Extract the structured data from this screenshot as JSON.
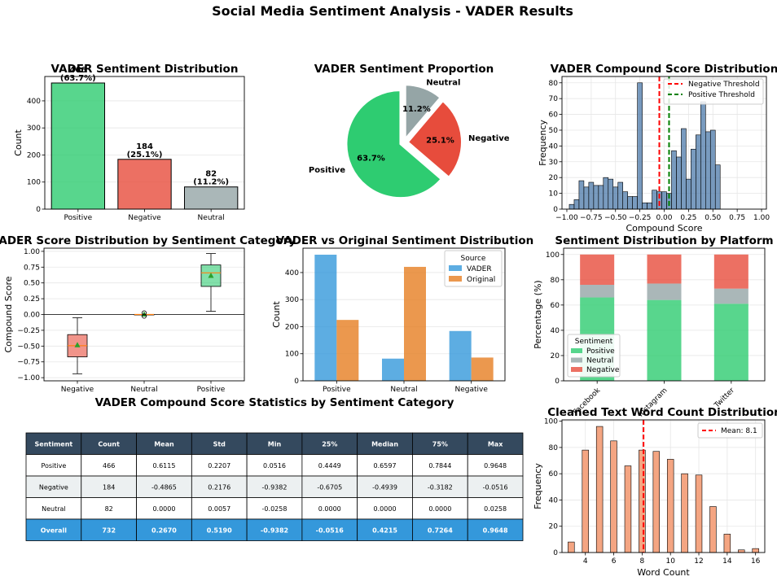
{
  "figure": {
    "title": "Social Media Sentiment Analysis - VADER Results"
  },
  "colors": {
    "positive": "#2ecc71",
    "negative": "#e74c3c",
    "neutral": "#95a5a6",
    "vader": "#3498db",
    "original": "#e67e22",
    "hist": "#4c7aaa",
    "wordcount": "#f4a582",
    "header": "#34495e",
    "overall": "#3498db",
    "zebra": "#ecf0f1"
  },
  "chart_data": [
    {
      "id": "dist",
      "type": "bar",
      "title": "VADER Sentiment Distribution",
      "xlabel": "",
      "ylabel": "Count",
      "categories": [
        "Positive",
        "Negative",
        "Neutral"
      ],
      "values": [
        466,
        184,
        82
      ],
      "data_labels": [
        "466\n(63.7%)",
        "184\n(25.1%)",
        "82\n(11.2%)"
      ],
      "ylim": [
        0,
        490
      ],
      "yticks": [
        0,
        100,
        200,
        300,
        400
      ]
    },
    {
      "id": "pie",
      "type": "pie",
      "title": "VADER Sentiment Proportion",
      "labels": [
        "Positive",
        "Negative",
        "Neutral"
      ],
      "values": [
        63.7,
        25.1,
        11.2
      ],
      "pct_labels": [
        "63.7%",
        "25.1%",
        "11.2%"
      ]
    },
    {
      "id": "compound_hist",
      "type": "bar",
      "title": "VADER Compound Score Distribution",
      "xlabel": "Compound Score",
      "ylabel": "Frequency",
      "bin_start": -0.975,
      "bin_width": 0.05,
      "values": [
        3,
        6,
        18,
        14,
        17,
        15,
        15,
        20,
        19,
        14,
        17,
        11,
        8,
        8,
        80,
        4,
        4,
        12,
        11,
        11,
        10,
        37,
        33,
        51,
        19,
        38,
        47,
        68,
        49,
        50,
        28
      ],
      "xlim": [
        -1.05,
        1.05
      ],
      "ylim": [
        0,
        84
      ],
      "xticks": [
        -1.0,
        -0.75,
        -0.5,
        -0.25,
        0.0,
        0.25,
        0.5,
        0.75,
        1.0
      ],
      "xtick_labels": [
        "−1.00",
        "−0.75",
        "−0.50",
        "−0.25",
        "0.00",
        "0.25",
        "0.50",
        "0.75",
        "1.00"
      ],
      "yticks": [
        0,
        10,
        20,
        30,
        40,
        50,
        60,
        70,
        80
      ],
      "thresholds": [
        {
          "name": "Negative Threshold",
          "x": -0.05,
          "color": "#ff0000"
        },
        {
          "name": "Positive Threshold",
          "x": 0.05,
          "color": "#008000"
        }
      ]
    },
    {
      "id": "box",
      "type": "box",
      "title": "VADER Score Distribution by Sentiment Category",
      "xlabel": "",
      "ylabel": "Compound Score",
      "categories": [
        "Negative",
        "Neutral",
        "Positive"
      ],
      "boxes": [
        {
          "whislo": -0.9382,
          "q1": -0.6705,
          "med": -0.4939,
          "q3": -0.3182,
          "whishi": -0.0516,
          "mean": -0.4865,
          "fliers": []
        },
        {
          "whislo": 0.0,
          "q1": 0.0,
          "med": 0.0,
          "q3": 0.0,
          "whishi": 0.0,
          "mean": 0.0,
          "fliers": [
            0.0258,
            -0.0258
          ]
        },
        {
          "whislo": 0.0516,
          "q1": 0.4449,
          "med": 0.6597,
          "q3": 0.7844,
          "whishi": 0.9648,
          "mean": 0.6115,
          "fliers": []
        }
      ],
      "ylim": [
        -1.05,
        1.05
      ],
      "yticks": [
        -1.0,
        -0.75,
        -0.5,
        -0.25,
        0.0,
        0.25,
        0.5,
        0.75,
        1.0
      ],
      "ytick_labels": [
        "−1.00",
        "−0.75",
        "−0.50",
        "−0.25",
        "0.00",
        "0.25",
        "0.50",
        "0.75",
        "1.00"
      ]
    },
    {
      "id": "vs",
      "type": "bar",
      "title": "VADER vs Original Sentiment Distribution",
      "xlabel": "",
      "ylabel": "Count",
      "categories": [
        "Positive",
        "Neutral",
        "Negative"
      ],
      "series": [
        {
          "name": "VADER",
          "values": [
            466,
            82,
            184
          ]
        },
        {
          "name": "Original",
          "values": [
            225,
            421,
            86
          ]
        }
      ],
      "legend_title": "Source",
      "ylim": [
        0,
        490
      ],
      "yticks": [
        0,
        100,
        200,
        300,
        400
      ]
    },
    {
      "id": "platform",
      "type": "bar",
      "stacked": true,
      "title": "Sentiment Distribution by Platform",
      "xlabel": "",
      "ylabel": "Percentage (%)",
      "categories": [
        "Facebook",
        "Instagram",
        "Twitter"
      ],
      "series": [
        {
          "name": "Positive",
          "values": [
            66,
            64,
            61
          ]
        },
        {
          "name": "Neutral",
          "values": [
            10,
            13,
            12
          ]
        },
        {
          "name": "Negative",
          "values": [
            24,
            23,
            27
          ]
        }
      ],
      "legend_title": "Sentiment",
      "ylim": [
        0,
        105
      ],
      "yticks": [
        0,
        20,
        40,
        60,
        80,
        100
      ]
    },
    {
      "id": "wordcount",
      "type": "bar",
      "title": "Cleaned Text Word Count Distribution",
      "xlabel": "Word Count",
      "ylabel": "Frequency",
      "x": [
        3,
        4,
        5,
        6,
        7,
        8,
        9,
        10,
        11,
        12,
        13,
        14,
        15,
        16
      ],
      "values": [
        8,
        78,
        96,
        85,
        66,
        78,
        77,
        71,
        60,
        59,
        35,
        14,
        2,
        3
      ],
      "mean": 8.1,
      "mean_label": "Mean: 8.1",
      "xlim": [
        2.35,
        16.65
      ],
      "ylim": [
        0,
        101
      ],
      "xticks": [
        4,
        6,
        8,
        10,
        12,
        14,
        16
      ],
      "yticks": [
        0,
        20,
        40,
        60,
        80,
        100
      ]
    },
    {
      "id": "stats",
      "type": "table",
      "title": "VADER Compound Score Statistics by Sentiment Category",
      "columns": [
        "Sentiment",
        "Count",
        "Mean",
        "Std",
        "Min",
        "25%",
        "Median",
        "75%",
        "Max"
      ],
      "rows": [
        [
          "Positive",
          "466",
          "0.6115",
          "0.2207",
          "0.0516",
          "0.4449",
          "0.6597",
          "0.7844",
          "0.9648"
        ],
        [
          "Negative",
          "184",
          "-0.4865",
          "0.2176",
          "-0.9382",
          "-0.6705",
          "-0.4939",
          "-0.3182",
          "-0.0516"
        ],
        [
          "Neutral",
          "82",
          "0.0000",
          "0.0057",
          "-0.0258",
          "0.0000",
          "0.0000",
          "0.0000",
          "0.0258"
        ],
        [
          "Overall",
          "732",
          "0.2670",
          "0.5190",
          "-0.9382",
          "-0.0516",
          "0.4215",
          "0.7264",
          "0.9648"
        ]
      ]
    }
  ]
}
